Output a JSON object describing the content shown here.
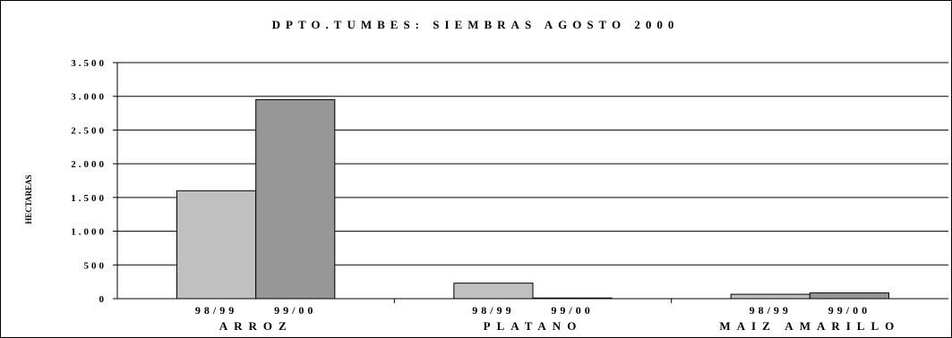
{
  "chart_data": {
    "type": "bar",
    "title": "DPTO.TUMBES: SIEMBRAS AGOSTO 2000",
    "ylabel": "HECTAREAS",
    "xlabel": "",
    "ylim": [
      0,
      3500
    ],
    "yticks": [
      0,
      500,
      1000,
      1500,
      2000,
      2500,
      3000,
      3500
    ],
    "ytick_labels": [
      "0",
      "500",
      "1.000",
      "1.500",
      "2.000",
      "2.500",
      "3.000",
      "3.500"
    ],
    "categories": [
      "ARROZ",
      "PLATANO",
      "MAIZ AMARILLO"
    ],
    "series": [
      {
        "name": "98/99",
        "values": [
          1600,
          230,
          65
        ],
        "color": "#c0c0c0"
      },
      {
        "name": "99/00",
        "values": [
          2950,
          10,
          85
        ],
        "color": "#969696"
      }
    ],
    "grid": true,
    "legend": "none"
  }
}
